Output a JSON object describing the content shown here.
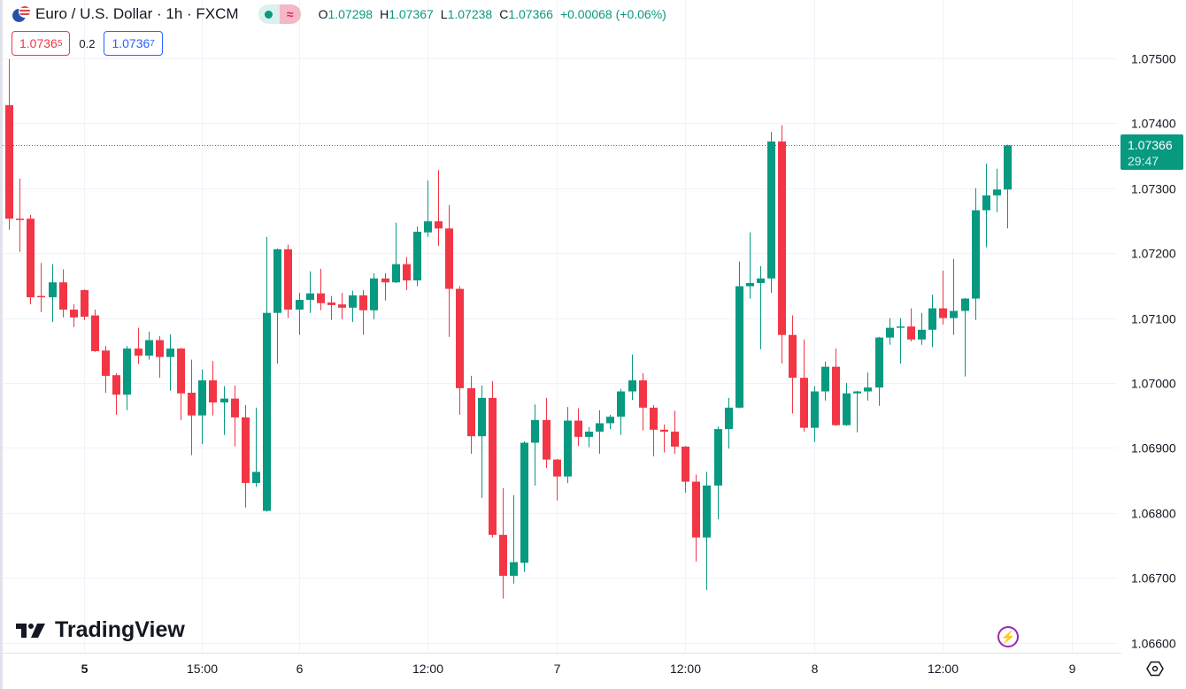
{
  "header": {
    "title": "Euro / U.S. Dollar · 1h · FXCM",
    "market_status_icon": "market-open-dot",
    "news_icon": "≈",
    "ohlc": [
      {
        "k": "O",
        "v": "1.07298"
      },
      {
        "k": "H",
        "v": "1.07367"
      },
      {
        "k": "L",
        "v": "1.07238"
      },
      {
        "k": "C",
        "v": "1.07366"
      }
    ],
    "change": "+0.00068 (+0.06%)"
  },
  "trade": {
    "bid_main": "1.0736",
    "bid_sup": "5",
    "spread": "0.2",
    "ask_main": "1.0736",
    "ask_sup": "7"
  },
  "last_price": {
    "price": "1.07366",
    "countdown": "29:47"
  },
  "logo": "TradingView",
  "colors": {
    "up": "#089981",
    "down": "#F23645",
    "grid": "#f0f3fa",
    "text": "#131722"
  },
  "chart_data": {
    "type": "candlestick",
    "title": "Euro / U.S. Dollar · 1h · FXCM",
    "ylim": [
      1.0656,
      1.0755
    ],
    "price_ticks": [
      "1.07500",
      "1.07400",
      "1.07300",
      "1.07200",
      "1.07100",
      "1.07000",
      "1.06900",
      "1.06800",
      "1.06700",
      "1.06600"
    ],
    "time_ticks": [
      {
        "label": "5",
        "index": 7,
        "bold": true
      },
      {
        "label": "15:00",
        "index": 18
      },
      {
        "label": "6",
        "index": 27
      },
      {
        "label": "12:00",
        "index": 39
      },
      {
        "label": "7",
        "index": 51
      },
      {
        "label": "12:00",
        "index": 63
      },
      {
        "label": "8",
        "index": 75
      },
      {
        "label": "12:00",
        "index": 87
      },
      {
        "label": "9",
        "index": 99
      }
    ],
    "last_price": 1.07366,
    "candles": [
      [
        1.07428,
        1.07499,
        1.07236,
        1.07253
      ],
      [
        1.07253,
        1.07315,
        1.07202,
        1.07252
      ],
      [
        1.07253,
        1.07259,
        1.07121,
        1.07132
      ],
      [
        1.07134,
        1.07185,
        1.07109,
        1.07133
      ],
      [
        1.07132,
        1.07183,
        1.07094,
        1.07155
      ],
      [
        1.07155,
        1.07175,
        1.07101,
        1.07113
      ],
      [
        1.07113,
        1.07121,
        1.07086,
        1.07101
      ],
      [
        1.07143,
        1.07144,
        1.07097,
        1.07102
      ],
      [
        1.07104,
        1.07113,
        1.07048,
        1.07049
      ],
      [
        1.0705,
        1.07057,
        1.06985,
        1.07011
      ],
      [
        1.07012,
        1.07015,
        1.06951,
        1.06982
      ],
      [
        1.06982,
        1.07057,
        1.06958,
        1.07053
      ],
      [
        1.07053,
        1.07085,
        1.07029,
        1.07042
      ],
      [
        1.07042,
        1.07079,
        1.07036,
        1.07066
      ],
      [
        1.07066,
        1.07072,
        1.07008,
        1.0704
      ],
      [
        1.0704,
        1.07075,
        1.06988,
        1.07053
      ],
      [
        1.07053,
        1.07054,
        1.06943,
        1.06984
      ],
      [
        1.06985,
        1.07036,
        1.06889,
        1.0695
      ],
      [
        1.0695,
        1.07021,
        1.06906,
        1.07004
      ],
      [
        1.07004,
        1.07034,
        1.0695,
        1.0697
      ],
      [
        1.0697,
        1.06995,
        1.0692,
        1.06976
      ],
      [
        1.06976,
        1.06996,
        1.06902,
        1.06947
      ],
      [
        1.06947,
        1.06966,
        1.06808,
        1.06846
      ],
      [
        1.06846,
        1.06962,
        1.0684,
        1.06863
      ],
      [
        1.06803,
        1.07225,
        1.06802,
        1.07108
      ],
      [
        1.07108,
        1.07207,
        1.0703,
        1.07206
      ],
      [
        1.07206,
        1.07213,
        1.071,
        1.07113
      ],
      [
        1.07113,
        1.07139,
        1.07074,
        1.07128
      ],
      [
        1.07128,
        1.07172,
        1.07108,
        1.07138
      ],
      [
        1.07138,
        1.07176,
        1.07112,
        1.07123
      ],
      [
        1.07124,
        1.07134,
        1.07097,
        1.0712
      ],
      [
        1.07121,
        1.07139,
        1.07098,
        1.07116
      ],
      [
        1.07116,
        1.07142,
        1.07094,
        1.07135
      ],
      [
        1.07135,
        1.07143,
        1.07074,
        1.07112
      ],
      [
        1.07112,
        1.07169,
        1.07098,
        1.07161
      ],
      [
        1.07161,
        1.07169,
        1.07127,
        1.07155
      ],
      [
        1.07155,
        1.07247,
        1.07154,
        1.07183
      ],
      [
        1.07183,
        1.07194,
        1.07143,
        1.07158
      ],
      [
        1.07158,
        1.07241,
        1.07149,
        1.07233
      ],
      [
        1.07232,
        1.07312,
        1.07225,
        1.07249
      ],
      [
        1.07249,
        1.07328,
        1.07211,
        1.07238
      ],
      [
        1.07238,
        1.07274,
        1.07071,
        1.07145
      ],
      [
        1.07145,
        1.07149,
        1.06951,
        1.06992
      ],
      [
        1.06992,
        1.07011,
        1.06891,
        1.06918
      ],
      [
        1.06918,
        1.06996,
        1.06823,
        1.06977
      ],
      [
        1.06977,
        1.07003,
        1.06762,
        1.06766
      ],
      [
        1.06766,
        1.06838,
        1.06668,
        1.06703
      ],
      [
        1.06703,
        1.06827,
        1.06691,
        1.06724
      ],
      [
        1.06723,
        1.0691,
        1.06709,
        1.06908
      ],
      [
        1.06908,
        1.06967,
        1.06842,
        1.06943
      ],
      [
        1.06943,
        1.06977,
        1.06869,
        1.06882
      ],
      [
        1.06882,
        1.06883,
        1.06819,
        1.06856
      ],
      [
        1.06856,
        1.06963,
        1.06846,
        1.06942
      ],
      [
        1.06942,
        1.06961,
        1.06903,
        1.06917
      ],
      [
        1.06917,
        1.06932,
        1.06901,
        1.06925
      ],
      [
        1.06925,
        1.06958,
        1.06891,
        1.06938
      ],
      [
        1.06938,
        1.06951,
        1.06929,
        1.06948
      ],
      [
        1.06948,
        1.06991,
        1.0692,
        1.06987
      ],
      [
        1.06987,
        1.07044,
        1.06974,
        1.07004
      ],
      [
        1.07004,
        1.07015,
        1.06927,
        1.06962
      ],
      [
        1.06962,
        1.06966,
        1.06887,
        1.06928
      ],
      [
        1.06928,
        1.06936,
        1.06893,
        1.06925
      ],
      [
        1.06925,
        1.06957,
        1.06891,
        1.06902
      ],
      [
        1.06902,
        1.06903,
        1.06831,
        1.06848
      ],
      [
        1.06848,
        1.06859,
        1.06725,
        1.06762
      ],
      [
        1.06762,
        1.06863,
        1.06681,
        1.06842
      ],
      [
        1.06842,
        1.06933,
        1.0679,
        1.06929
      ],
      [
        1.06929,
        1.06977,
        1.06899,
        1.06962
      ],
      [
        1.06962,
        1.07187,
        1.06961,
        1.07149
      ],
      [
        1.07149,
        1.07232,
        1.0713,
        1.07154
      ],
      [
        1.07154,
        1.0718,
        1.07052,
        1.07161
      ],
      [
        1.07161,
        1.07387,
        1.07139,
        1.07372
      ],
      [
        1.07372,
        1.07397,
        1.0703,
        1.07074
      ],
      [
        1.07074,
        1.07104,
        1.06953,
        1.07008
      ],
      [
        1.07008,
        1.07067,
        1.06925,
        1.06931
      ],
      [
        1.06931,
        1.06995,
        1.06909,
        1.06987
      ],
      [
        1.06987,
        1.07033,
        1.06973,
        1.07025
      ],
      [
        1.07025,
        1.07053,
        1.06934,
        1.06935
      ],
      [
        1.06935,
        1.07,
        1.06934,
        1.06984
      ],
      [
        1.06984,
        1.06988,
        1.06924,
        1.06987
      ],
      [
        1.06987,
        1.07016,
        1.06973,
        1.06993
      ],
      [
        1.06993,
        1.07071,
        1.06965,
        1.0707
      ],
      [
        1.0707,
        1.071,
        1.07059,
        1.07085
      ],
      [
        1.07085,
        1.071,
        1.0703,
        1.07087
      ],
      [
        1.07087,
        1.07115,
        1.07064,
        1.07067
      ],
      [
        1.07067,
        1.07108,
        1.07059,
        1.07082
      ],
      [
        1.07082,
        1.07136,
        1.07055,
        1.07115
      ],
      [
        1.07115,
        1.07173,
        1.0709,
        1.071
      ],
      [
        1.071,
        1.07191,
        1.07074,
        1.07111
      ],
      [
        1.07111,
        1.07131,
        1.0701,
        1.0713
      ],
      [
        1.0713,
        1.073,
        1.07097,
        1.07266
      ],
      [
        1.07266,
        1.07338,
        1.07209,
        1.07289
      ],
      [
        1.07289,
        1.0733,
        1.07263,
        1.07298
      ],
      [
        1.07298,
        1.07367,
        1.07238,
        1.07366
      ]
    ],
    "candle_format": [
      "open",
      "high",
      "low",
      "close"
    ]
  }
}
